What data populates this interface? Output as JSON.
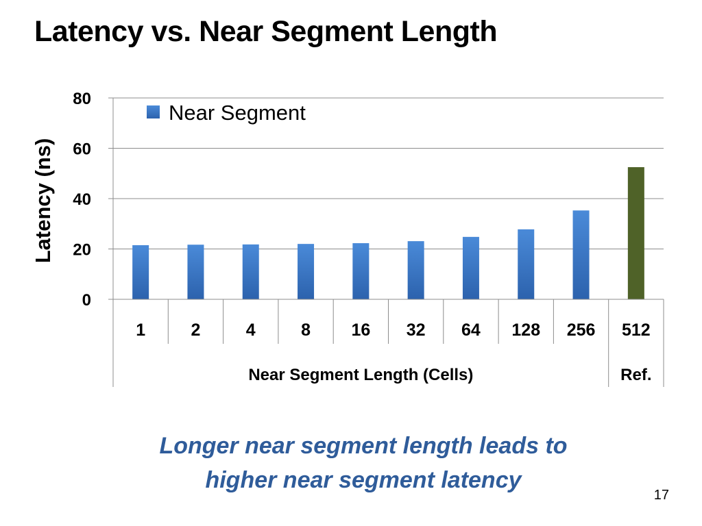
{
  "slide": {
    "title": "Latency vs. Near Segment Length",
    "takeaway_line1": "Longer near segment length leads to",
    "takeaway_line2": "higher near segment latency",
    "page_number": "17"
  },
  "chart_data": {
    "type": "bar",
    "categories": [
      "1",
      "2",
      "4",
      "8",
      "16",
      "32",
      "64",
      "128",
      "256",
      "512"
    ],
    "values": [
      21.5,
      21.7,
      21.8,
      22.0,
      22.3,
      23.1,
      24.8,
      27.8,
      35.3,
      52.5
    ],
    "bar_colors": [
      "#3b78c9",
      "#3b78c9",
      "#3b78c9",
      "#3b78c9",
      "#3b78c9",
      "#3b78c9",
      "#3b78c9",
      "#3b78c9",
      "#3b78c9",
      "#4f6228"
    ],
    "group_labels": [
      {
        "label": "Near Segment Length (Cells)",
        "categories": [
          "1",
          "2",
          "4",
          "8",
          "16",
          "32",
          "64",
          "128",
          "256"
        ]
      },
      {
        "label": "Ref.",
        "categories": [
          "512"
        ]
      }
    ],
    "ylabel": "Latency (ns)",
    "xlabel": "",
    "ylim": [
      0,
      80
    ],
    "yticks": [
      0,
      20,
      40,
      60,
      80
    ],
    "grid": true,
    "legend": {
      "position": "top-left",
      "entries": [
        {
          "name": "Near Segment",
          "color": "#3b78c9"
        }
      ]
    }
  }
}
